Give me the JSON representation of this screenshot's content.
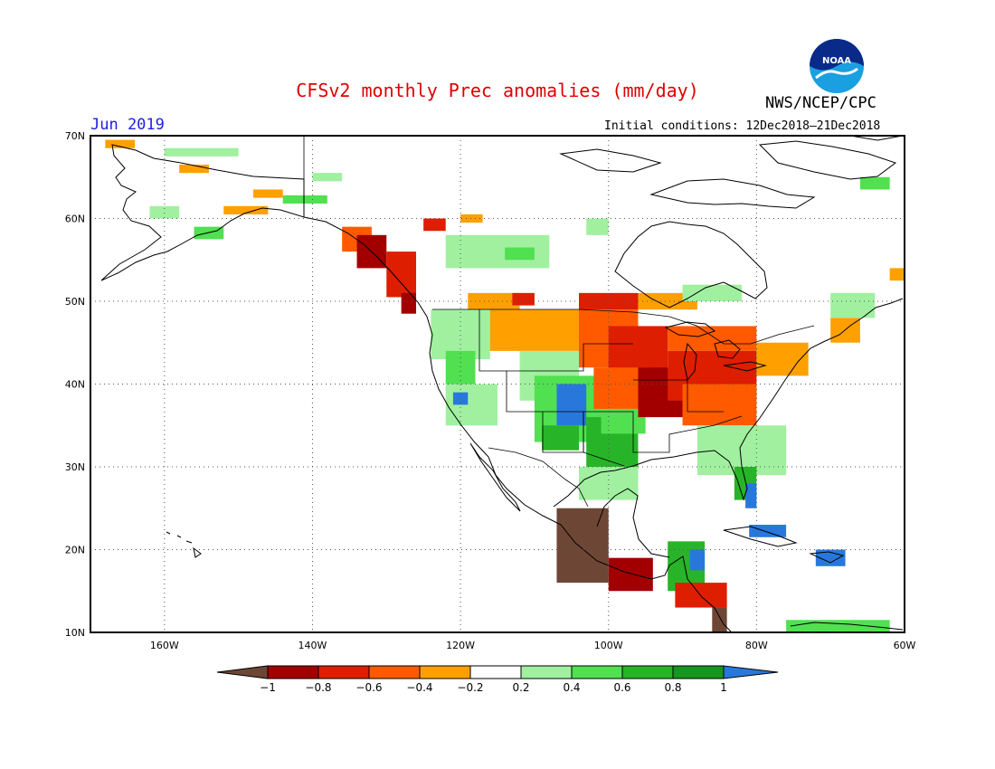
{
  "header": {
    "title": "CFSv2 monthly Prec anomalies (mm/day)",
    "month": "Jun 2019",
    "agency": "NWS/NCEP/CPC",
    "initial_conditions": "Initial conditions: 12Dec2018–21Dec2018",
    "logo_text": "NOAA"
  },
  "map": {
    "lat_labels": [
      "70N",
      "60N",
      "50N",
      "40N",
      "30N",
      "20N",
      "10N"
    ],
    "lon_labels": [
      "160W",
      "140W",
      "120W",
      "100W",
      "80W",
      "60W"
    ],
    "lat_range": [
      10,
      70
    ],
    "lon_range": [
      -170,
      -60
    ],
    "grid": "dotted"
  },
  "legend": {
    "tick_labels": [
      "−1",
      "−0.8",
      "−0.6",
      "−0.4",
      "−0.2",
      "0.2",
      "0.4",
      "0.6",
      "0.8",
      "1"
    ],
    "colors": {
      "below_-1": "#6e4636",
      "-1_-0.8": "#a20000",
      "-0.8_-0.6": "#de1e00",
      "-0.6_-0.4": "#ff5a00",
      "-0.4_-0.2": "#ffa000",
      "-0.2_0.2": "#ffffff",
      "0.2_0.4": "#a0f0a0",
      "0.4_0.6": "#50e050",
      "0.6_0.8": "#28b428",
      "0.8_1": "#16961e",
      "above_1": "#2878dc"
    }
  },
  "anomaly_regions": [
    {
      "name": "Alaska north slope west",
      "level": "-0.4_-0.2",
      "lon": [
        -168,
        -164
      ],
      "lat": [
        68.5,
        69.5
      ]
    },
    {
      "name": "Alaska north slope",
      "level": "0.2_0.4",
      "lon": [
        -160,
        -150
      ],
      "lat": [
        67.5,
        68.5
      ]
    },
    {
      "name": "Alaska interior west",
      "level": "-0.4_-0.2",
      "lon": [
        -158,
        -154
      ],
      "lat": [
        65.5,
        66.5
      ]
    },
    {
      "name": "Yukon south",
      "level": "0.2_0.4",
      "lon": [
        -140,
        -136
      ],
      "lat": [
        64.5,
        65.5
      ]
    },
    {
      "name": "Alaska interior",
      "level": "-0.4_-0.2",
      "lon": [
        -148,
        -144
      ],
      "lat": [
        62.5,
        63.5
      ]
    },
    {
      "name": "Alaska range",
      "level": "0.4_0.6",
      "lon": [
        -144,
        -138
      ],
      "lat": [
        61.8,
        62.8
      ]
    },
    {
      "name": "Southwest Alaska",
      "level": "0.2_0.4",
      "lon": [
        -162,
        -158
      ],
      "lat": [
        60,
        61.5
      ]
    },
    {
      "name": "Alaska peninsula",
      "level": "0.4_0.6",
      "lon": [
        -156,
        -152
      ],
      "lat": [
        57.5,
        59
      ]
    },
    {
      "name": "Cook inlet",
      "level": "-0.4_-0.2",
      "lon": [
        -152,
        -146
      ],
      "lat": [
        60.5,
        61.5
      ]
    },
    {
      "name": "Southeast Alaska",
      "level": "-0.6_-0.4",
      "lon": [
        -136,
        -132
      ],
      "lat": [
        56,
        59
      ]
    },
    {
      "name": "Alaska panhandle coast",
      "level": "-1_-0.8",
      "lon": [
        -134,
        -130
      ],
      "lat": [
        54,
        58
      ]
    },
    {
      "name": "British Columbia coast",
      "level": "-0.8_-0.6",
      "lon": [
        -130,
        -126
      ],
      "lat": [
        50.5,
        56
      ]
    },
    {
      "name": "Vancouver island",
      "level": "-1_-0.8",
      "lon": [
        -128,
        -126
      ],
      "lat": [
        48.5,
        51
      ]
    },
    {
      "name": "Northern Alberta",
      "level": "-0.8_-0.6",
      "lon": [
        -125,
        -122
      ],
      "lat": [
        58.5,
        60
      ]
    },
    {
      "name": "Yellowknife region",
      "level": "-0.4_-0.2",
      "lon": [
        -120,
        -117
      ],
      "lat": [
        59.5,
        60.5
      ]
    },
    {
      "name": "Saskatchewan north",
      "level": "0.2_0.4",
      "lon": [
        -122,
        -108
      ],
      "lat": [
        54,
        58
      ]
    },
    {
      "name": "Saskatchewan center",
      "level": "0.4_0.6",
      "lon": [
        -114,
        -110
      ],
      "lat": [
        55,
        56.5
      ]
    },
    {
      "name": "Hudson bay west",
      "level": "0.2_0.4",
      "lon": [
        -103,
        -100
      ],
      "lat": [
        58,
        60
      ]
    },
    {
      "name": "Prairies south",
      "level": "-0.4_-0.2",
      "lon": [
        -119,
        -112
      ],
      "lat": [
        48,
        51
      ]
    },
    {
      "name": "Alberta south",
      "level": "-0.8_-0.6",
      "lon": [
        -113,
        -110
      ],
      "lat": [
        49.5,
        51
      ]
    },
    {
      "name": "Manitoba south",
      "level": "-0.8_-0.6",
      "lon": [
        -104,
        -96
      ],
      "lat": [
        49,
        51
      ]
    },
    {
      "name": "Ontario northwest",
      "level": "-0.4_-0.2",
      "lon": [
        -96,
        -88
      ],
      "lat": [
        49,
        51
      ]
    },
    {
      "name": "Ontario north",
      "level": "0.2_0.4",
      "lon": [
        -90,
        -82
      ],
      "lat": [
        50,
        52
      ]
    },
    {
      "name": "Montana",
      "level": "-0.4_-0.2",
      "lon": [
        -117,
        -104
      ],
      "lat": [
        44,
        49
      ]
    },
    {
      "name": "Pacific northwest",
      "level": "0.2_0.4",
      "lon": [
        -124,
        -116
      ],
      "lat": [
        43,
        49
      ]
    },
    {
      "name": "Idaho west",
      "level": "0.4_0.6",
      "lon": [
        -122,
        -118
      ],
      "lat": [
        40,
        44
      ]
    },
    {
      "name": "Nevada",
      "level": "0.2_0.4",
      "lon": [
        -122,
        -115
      ],
      "lat": [
        35,
        40
      ]
    },
    {
      "name": "California center",
      "level": "above_1",
      "lon": [
        -121,
        -119
      ],
      "lat": [
        37.5,
        39
      ]
    },
    {
      "name": "Wyoming Utah",
      "level": "0.2_0.4",
      "lon": [
        -112,
        -104
      ],
      "lat": [
        38,
        44
      ]
    },
    {
      "name": "Colorado",
      "level": "0.4_0.6",
      "lon": [
        -110,
        -100
      ],
      "lat": [
        33,
        41
      ]
    },
    {
      "name": "Colorado core",
      "level": "above_1",
      "lon": [
        -107,
        -103
      ],
      "lat": [
        35,
        40
      ]
    },
    {
      "name": "New Mexico",
      "level": "0.6_0.8",
      "lon": [
        -109,
        -104
      ],
      "lat": [
        32,
        35
      ]
    },
    {
      "name": "Texas panhandle",
      "level": "0.6_0.8",
      "lon": [
        -103,
        -96
      ],
      "lat": [
        29,
        36
      ]
    },
    {
      "name": "Oklahoma",
      "level": "0.4_0.6",
      "lon": [
        -101,
        -95
      ],
      "lat": [
        34,
        37
      ]
    },
    {
      "name": "Texas south",
      "level": "0.2_0.4",
      "lon": [
        -104,
        -96
      ],
      "lat": [
        26,
        30
      ]
    },
    {
      "name": "Dakotas",
      "level": "-0.6_-0.4",
      "lon": [
        -104,
        -96
      ],
      "lat": [
        42,
        49
      ]
    },
    {
      "name": "Great plains north",
      "level": "-0.8_-0.6",
      "lon": [
        -100,
        -92
      ],
      "lat": [
        41,
        47
      ]
    },
    {
      "name": "Central plains",
      "level": "-0.6_-0.4",
      "lon": [
        -102,
        -94
      ],
      "lat": [
        37,
        42
      ]
    },
    {
      "name": "Missouri Illinois",
      "level": "-1_-0.8",
      "lon": [
        -96,
        -86
      ],
      "lat": [
        36,
        42
      ]
    },
    {
      "name": "Midwest core",
      "level": "-0.8_-0.6",
      "lon": [
        -92,
        -80
      ],
      "lat": [
        38,
        44
      ]
    },
    {
      "name": "Ohio valley",
      "level": "-0.6_-0.4",
      "lon": [
        -90,
        -80
      ],
      "lat": [
        35,
        40
      ]
    },
    {
      "name": "Great lakes",
      "level": "-0.6_-0.4",
      "lon": [
        -92,
        -80
      ],
      "lat": [
        44,
        47
      ]
    },
    {
      "name": "Northeast",
      "level": "-0.4_-0.2",
      "lon": [
        -80,
        -73
      ],
      "lat": [
        41,
        45
      ]
    },
    {
      "name": "Southeast US",
      "level": "0.2_0.4",
      "lon": [
        -88,
        -76
      ],
      "lat": [
        29,
        35
      ]
    },
    {
      "name": "Florida",
      "level": "0.6_0.8",
      "lon": [
        -83,
        -80
      ],
      "lat": [
        26,
        30
      ]
    },
    {
      "name": "Florida tip",
      "level": "above_1",
      "lon": [
        -81.5,
        -80
      ],
      "lat": [
        25,
        28
      ]
    },
    {
      "name": "Mexico west coast",
      "level": "below_-1",
      "lon": [
        -107,
        -100
      ],
      "lat": [
        16,
        25
      ]
    },
    {
      "name": "Mexico south",
      "level": "-1_-0.8",
      "lon": [
        -100,
        -94
      ],
      "lat": [
        15,
        19
      ]
    },
    {
      "name": "Central America north",
      "level": "0.6_0.8",
      "lon": [
        -92,
        -87
      ],
      "lat": [
        15,
        21
      ]
    },
    {
      "name": "Honduras",
      "level": "above_1",
      "lon": [
        -89,
        -87
      ],
      "lat": [
        17.5,
        20
      ]
    },
    {
      "name": "Nicaragua",
      "level": "-0.8_-0.6",
      "lon": [
        -91,
        -84
      ],
      "lat": [
        13,
        16
      ]
    },
    {
      "name": "Panama Costa Rica",
      "level": "below_-1",
      "lon": [
        -86,
        -84
      ],
      "lat": [
        10,
        13
      ]
    },
    {
      "name": "Cuba",
      "level": "above_1",
      "lon": [
        -81,
        -76
      ],
      "lat": [
        21.5,
        23
      ]
    },
    {
      "name": "Hispaniola",
      "level": "above_1",
      "lon": [
        -72,
        -68
      ],
      "lat": [
        18,
        20
      ]
    },
    {
      "name": "Caribbean south",
      "level": "0.4_0.6",
      "lon": [
        -76,
        -62
      ],
      "lat": [
        10,
        11.5
      ]
    },
    {
      "name": "Quebec east",
      "level": "-0.4_-0.2",
      "lon": [
        -70,
        -66
      ],
      "lat": [
        45,
        48
      ]
    },
    {
      "name": "Labrador",
      "level": "0.2_0.4",
      "lon": [
        -70,
        -64
      ],
      "lat": [
        48,
        51
      ]
    },
    {
      "name": "Greenland coast",
      "level": "0.4_0.6",
      "lon": [
        -66,
        -62
      ],
      "lat": [
        63.5,
        65
      ]
    },
    {
      "name": "Newfoundland",
      "level": "-0.4_-0.2",
      "lon": [
        -62,
        -60
      ],
      "lat": [
        52.5,
        54
      ]
    }
  ]
}
